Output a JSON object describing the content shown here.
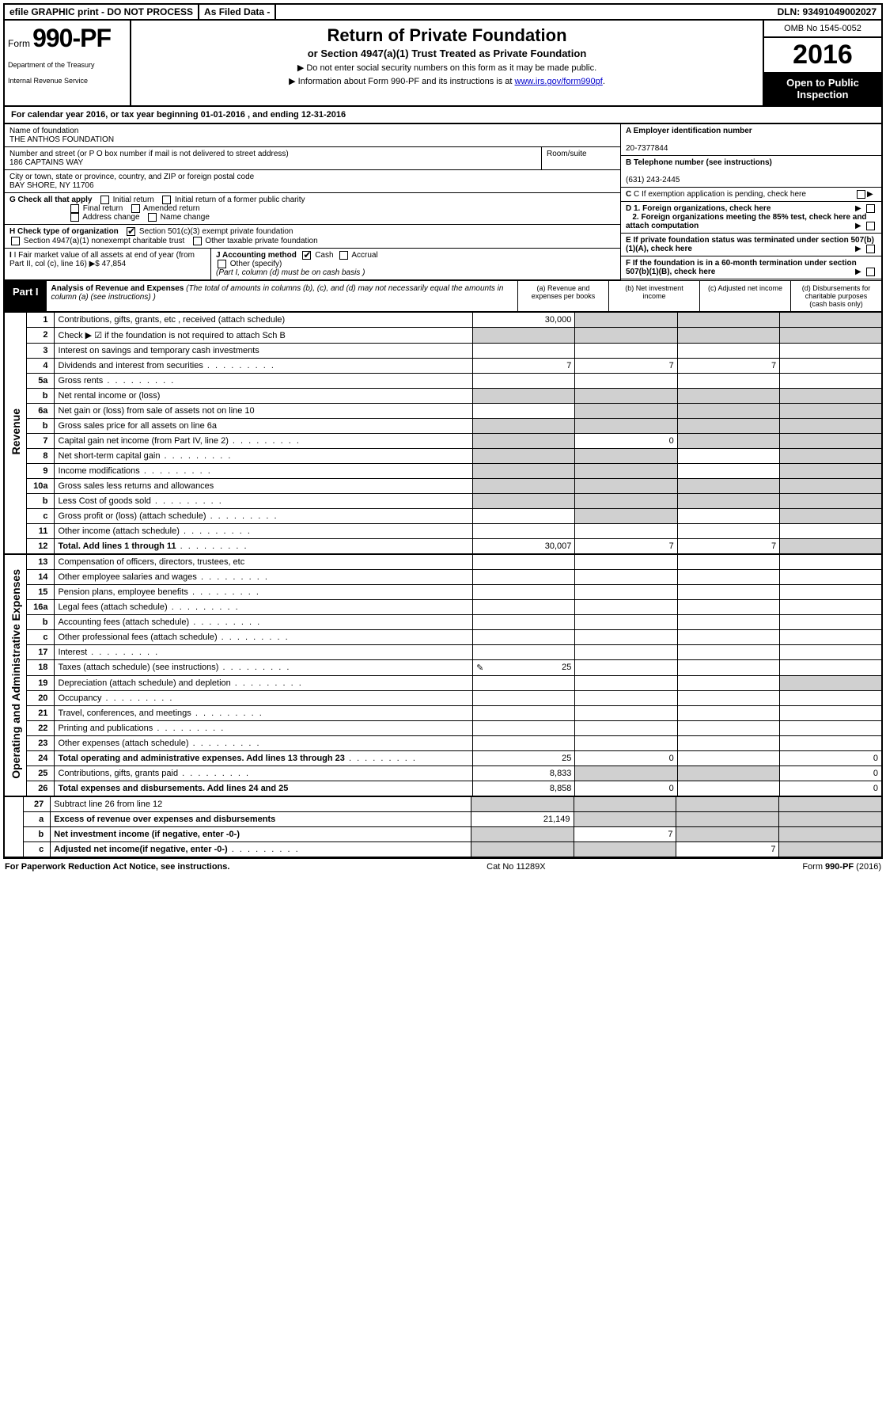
{
  "topbar": {
    "efile": "efile GRAPHIC print - DO NOT PROCESS",
    "asfiled": "As Filed Data -",
    "dln": "DLN: 93491049002027"
  },
  "header": {
    "form_prefix": "Form",
    "form_number": "990-PF",
    "dept1": "Department of the Treasury",
    "dept2": "Internal Revenue Service",
    "title": "Return of Private Foundation",
    "subtitle": "or Section 4947(a)(1) Trust Treated as Private Foundation",
    "instr1": "▶ Do not enter social security numbers on this form as it may be made public.",
    "instr2_prefix": "▶ Information about Form 990-PF and its instructions is at ",
    "instr2_link": "www.irs.gov/form990pf",
    "omb": "OMB No 1545-0052",
    "year": "2016",
    "open": "Open to Public Inspection"
  },
  "calyear": {
    "prefix": "For calendar year 2016, or tax year beginning ",
    "begin": "01-01-2016",
    "mid": " , and ending ",
    "end": "12-31-2016"
  },
  "info": {
    "name_lbl": "Name of foundation",
    "name": "THE ANTHOS FOUNDATION",
    "addr_lbl": "Number and street (or P O  box number if mail is not delivered to street address)",
    "room_lbl": "Room/suite",
    "addr": "186 CAPTAINS WAY",
    "city_lbl": "City or town, state or province, country, and ZIP or foreign postal code",
    "city": "BAY SHORE, NY  11706",
    "A_lbl": "A Employer identification number",
    "A_val": "20-7377844",
    "B_lbl": "B Telephone number (see instructions)",
    "B_val": "(631) 243-2445",
    "C_lbl": "C If exemption application is pending, check here",
    "G_lbl": "G Check all that apply",
    "G_initial": "Initial return",
    "G_initial_former": "Initial return of a former public charity",
    "G_final": "Final return",
    "G_amended": "Amended return",
    "G_addr": "Address change",
    "G_name": "Name change",
    "D1": "D 1. Foreign organizations, check here",
    "D2": "2. Foreign organizations meeting the 85% test, check here and attach computation",
    "E": "E  If private foundation status was terminated under section 507(b)(1)(A), check here",
    "H_lbl": "H Check type of organization",
    "H_501c3": "Section 501(c)(3) exempt private foundation",
    "H_4947": "Section 4947(a)(1) nonexempt charitable trust",
    "H_other": "Other taxable private foundation",
    "I_lbl": "I Fair market value of all assets at end of year (from Part II, col  (c), line 16)",
    "I_val": "▶$  47,854",
    "J_lbl": "J Accounting method",
    "J_cash": "Cash",
    "J_accrual": "Accrual",
    "J_other": "Other (specify)",
    "J_note": "(Part I, column (d) must be on cash basis )",
    "F": "F  If the foundation is in a 60-month termination under section 507(b)(1)(B), check here"
  },
  "part1": {
    "label": "Part I",
    "title": "Analysis of Revenue and Expenses",
    "title_note": "(The total of amounts in columns (b), (c), and (d) may not necessarily equal the amounts in column (a) (see instructions) )",
    "col_a": "(a) Revenue and expenses per books",
    "col_b": "(b) Net investment income",
    "col_c": "(c) Adjusted net income",
    "col_d": "(d) Disbursements for charitable purposes (cash basis only)",
    "section_rev": "Revenue",
    "section_exp": "Operating and Administrative Expenses"
  },
  "rows": [
    {
      "n": "1",
      "d": "Contributions, gifts, grants, etc , received (attach schedule)",
      "a": "30,000",
      "b": "",
      "c": "",
      "dcol": "",
      "sa": true,
      "sb": true,
      "sc": true,
      "sd": true
    },
    {
      "n": "2",
      "d": "Check ▶ ☑  if the foundation is not required to attach Sch  B",
      "a": "",
      "b": "",
      "c": "",
      "dcol": "",
      "sa": false,
      "allshade": true
    },
    {
      "n": "3",
      "d": "Interest on savings and temporary cash investments",
      "a": "",
      "b": "",
      "c": "",
      "dcol": ""
    },
    {
      "n": "4",
      "d": "Dividends and interest from securities",
      "dots": true,
      "a": "7",
      "b": "7",
      "c": "7",
      "dcol": ""
    },
    {
      "n": "5a",
      "d": "Gross rents",
      "dots": true,
      "a": "",
      "b": "",
      "c": "",
      "dcol": ""
    },
    {
      "n": "b",
      "d": "Net rental income or (loss)  ",
      "a": "",
      "b": "",
      "c": "",
      "dcol": "",
      "allshade": true
    },
    {
      "n": "6a",
      "d": "Net gain or (loss) from sale of assets not on line 10",
      "a": "",
      "b": "",
      "c": "",
      "dcol": "",
      "sb": true,
      "sc": true,
      "sd": true
    },
    {
      "n": "b",
      "d": "Gross sales price for all assets on line 6a",
      "a": "",
      "b": "",
      "c": "",
      "dcol": "",
      "allshade": true
    },
    {
      "n": "7",
      "d": "Capital gain net income (from Part IV, line 2)",
      "dots": true,
      "a": "",
      "b": "0",
      "c": "",
      "dcol": "",
      "sa": true,
      "sc": true,
      "sd": true
    },
    {
      "n": "8",
      "d": "Net short-term capital gain",
      "dots": true,
      "a": "",
      "b": "",
      "c": "",
      "dcol": "",
      "sa": true,
      "sb": true,
      "sd": true
    },
    {
      "n": "9",
      "d": "Income modifications",
      "dots": true,
      "a": "",
      "b": "",
      "c": "",
      "dcol": "",
      "sa": true,
      "sb": true,
      "sd": true
    },
    {
      "n": "10a",
      "d": "Gross sales less returns and allowances",
      "a": "",
      "b": "",
      "c": "",
      "dcol": "",
      "allshade": true
    },
    {
      "n": "b",
      "d": "Less  Cost of goods sold",
      "dots": true,
      "a": "",
      "b": "",
      "c": "",
      "dcol": "",
      "allshade": true
    },
    {
      "n": "c",
      "d": "Gross profit or (loss) (attach schedule)",
      "dots": true,
      "a": "",
      "b": "",
      "c": "",
      "dcol": "",
      "sb": true,
      "sd": true
    },
    {
      "n": "11",
      "d": "Other income (attach schedule)",
      "dots": true,
      "a": "",
      "b": "",
      "c": "",
      "dcol": ""
    },
    {
      "n": "12",
      "d": "Total. Add lines 1 through 11",
      "dots": true,
      "bold": true,
      "a": "30,007",
      "b": "7",
      "c": "7",
      "dcol": "",
      "sd": true
    }
  ],
  "exp_rows": [
    {
      "n": "13",
      "d": "Compensation of officers, directors, trustees, etc",
      "a": "",
      "b": "",
      "c": "",
      "dcol": ""
    },
    {
      "n": "14",
      "d": "Other employee salaries and wages",
      "dots": true,
      "a": "",
      "b": "",
      "c": "",
      "dcol": ""
    },
    {
      "n": "15",
      "d": "Pension plans, employee benefits",
      "dots": true,
      "a": "",
      "b": "",
      "c": "",
      "dcol": ""
    },
    {
      "n": "16a",
      "d": "Legal fees (attach schedule)",
      "dots": true,
      "a": "",
      "b": "",
      "c": "",
      "dcol": ""
    },
    {
      "n": "b",
      "d": "Accounting fees (attach schedule)",
      "dots": true,
      "a": "",
      "b": "",
      "c": "",
      "dcol": ""
    },
    {
      "n": "c",
      "d": "Other professional fees (attach schedule)",
      "dots": true,
      "a": "",
      "b": "",
      "c": "",
      "dcol": ""
    },
    {
      "n": "17",
      "d": "Interest",
      "dots": true,
      "a": "",
      "b": "",
      "c": "",
      "dcol": ""
    },
    {
      "n": "18",
      "d": "Taxes (attach schedule) (see instructions)",
      "dots": true,
      "a": "25",
      "b": "",
      "c": "",
      "dcol": "",
      "icon": true
    },
    {
      "n": "19",
      "d": "Depreciation (attach schedule) and depletion",
      "dots": true,
      "a": "",
      "b": "",
      "c": "",
      "dcol": "",
      "sd": true
    },
    {
      "n": "20",
      "d": "Occupancy",
      "dots": true,
      "a": "",
      "b": "",
      "c": "",
      "dcol": ""
    },
    {
      "n": "21",
      "d": "Travel, conferences, and meetings",
      "dots": true,
      "a": "",
      "b": "",
      "c": "",
      "dcol": ""
    },
    {
      "n": "22",
      "d": "Printing and publications",
      "dots": true,
      "a": "",
      "b": "",
      "c": "",
      "dcol": ""
    },
    {
      "n": "23",
      "d": "Other expenses (attach schedule)",
      "dots": true,
      "a": "",
      "b": "",
      "c": "",
      "dcol": ""
    },
    {
      "n": "24",
      "d": "Total operating and administrative expenses. Add lines 13 through 23",
      "dots": true,
      "bold": true,
      "a": "25",
      "b": "0",
      "c": "",
      "dcol": "0"
    },
    {
      "n": "25",
      "d": "Contributions, gifts, grants paid",
      "dots": true,
      "a": "8,833",
      "b": "",
      "c": "",
      "dcol": "0",
      "sb": true,
      "sc": true
    },
    {
      "n": "26",
      "d": "Total expenses and disbursements. Add lines 24 and 25",
      "bold": true,
      "a": "8,858",
      "b": "0",
      "c": "",
      "dcol": "0"
    }
  ],
  "bottom_rows": [
    {
      "n": "27",
      "d": "Subtract line 26 from line 12",
      "a": "",
      "b": "",
      "c": "",
      "dcol": "",
      "allshade": true
    },
    {
      "n": "a",
      "d": "Excess of revenue over expenses and disbursements",
      "bold": true,
      "a": "21,149",
      "b": "",
      "c": "",
      "dcol": "",
      "sb": true,
      "sc": true,
      "sd": true
    },
    {
      "n": "b",
      "d": "Net investment income (if negative, enter -0-)",
      "bold": true,
      "a": "",
      "b": "7",
      "c": "",
      "dcol": "",
      "sa": true,
      "sc": true,
      "sd": true
    },
    {
      "n": "c",
      "d": "Adjusted net income(if negative, enter -0-)",
      "dots": true,
      "bold": true,
      "a": "",
      "b": "",
      "c": "7",
      "dcol": "",
      "sa": true,
      "sb": true,
      "sd": true
    }
  ],
  "footer": {
    "left": "For Paperwork Reduction Act Notice, see instructions.",
    "mid": "Cat  No  11289X",
    "right": "Form 990-PF (2016)"
  }
}
